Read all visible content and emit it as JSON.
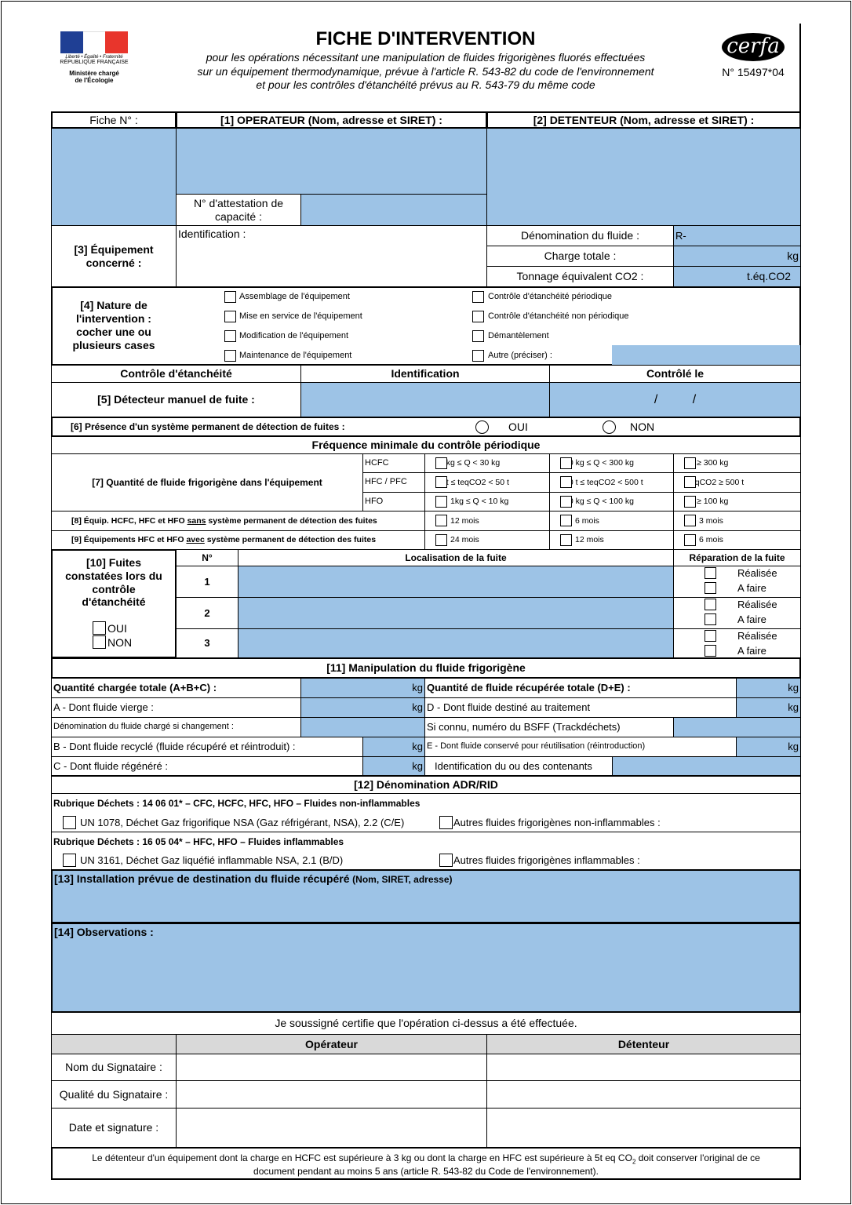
{
  "header": {
    "title": "FICHE D'INTERVENTION",
    "subtitle": [
      "pour les opérations nécessitant une manipulation de fluides frigorigènes fluorés effectuées",
      "sur un équipement thermodynamique, prévue à l'article R. 543-82 du code de l'environnement",
      "et pour les contrôles d'étanchéité prévus au R. 543-79 du même code"
    ],
    "logo_left": {
      "motto": "Liberté • Égalité • Fraternité",
      "republic": "RÉPUBLIQUE FRANÇAISE",
      "ministry": "Ministère chargé de l'Écologie"
    },
    "cerfa_logo": "cerfa",
    "cerfa_number": "N° 15497*04"
  },
  "colors": {
    "field": "#9dc3e6",
    "header_grey": "#d9d9d9"
  },
  "s1": {
    "fiche": "Fiche N° :",
    "operateur": "[1] OPERATEUR (Nom, adresse et SIRET) :",
    "detenteur": "[2] DETENTEUR (Nom, adresse et SIRET) :",
    "attestation": "N° d'attestation de capacité :"
  },
  "s3": {
    "label": "[3] Équipement concerné :",
    "identification": "Identification :",
    "fluide": "Dénomination du fluide :",
    "fluide_value": "R-",
    "charge": "Charge totale :",
    "charge_unit": "kg",
    "tonnage": "Tonnage équivalent CO2 :",
    "tonnage_unit": "t.éq.CO2"
  },
  "s4": {
    "label": "[4] Nature de l'intervention : cocher une ou plusieurs cases",
    "left": [
      "Assemblage de l'équipement",
      "Mise en service de l'équipement",
      "Modification de l'équipement",
      "Maintenance de l'équipement"
    ],
    "right": [
      "Contrôle d'étanchéité périodique",
      "Contrôle d'étanchéité non périodique",
      "Démantèlement",
      "Autre (préciser) :"
    ]
  },
  "s5": {
    "col1": "Contrôle d'étanchéité",
    "col2": "Identification",
    "col3": "Contrôlé le",
    "label": "[5] Détecteur manuel de fuite :",
    "date": "/          /"
  },
  "s6": {
    "label": "[6] Présence d'un système permanent de détection de fuites :",
    "oui": "OUI",
    "non": "NON"
  },
  "freq": {
    "title": "Fréquence minimale du contrôle périodique",
    "s7": "[7] Quantité de fluide frigorigène dans l'équipement",
    "types": [
      "HCFC",
      "HFC / PFC",
      "HFO"
    ],
    "rows": [
      [
        "2 kg ≤ Q < 30 kg",
        "30 kg ≤ Q < 300 kg",
        "Q ≥ 300 kg"
      ],
      [
        "5 t ≤ teqCO2 < 50 t",
        "50 t ≤ teqCO2 < 500 t",
        "teqCO2 ≥ 500 t"
      ],
      [
        "1kg ≤ Q < 10 kg",
        "10 kg ≤ Q < 100 kg",
        "Q ≥ 100 kg"
      ]
    ],
    "s8_a": "[8] Équip. HCFC, HFC et HFO ",
    "s8_u": "sans",
    "s8_b": " système permanent de détection des fuites",
    "s8": [
      "12 mois",
      "6 mois",
      "3 mois"
    ],
    "s9_a": "[9] Équipements HFC et HFO ",
    "s9_u": "avec",
    "s9_b": " système permanent de détection des fuites",
    "s9": [
      "24 mois",
      "12 mois",
      "6 mois"
    ]
  },
  "s10": {
    "label": "[10] Fuites constatées lors du contrôle d'étanchéité",
    "oui": "OUI",
    "non": "NON",
    "col_n": "N°",
    "col_loc": "Localisation de la fuite",
    "col_rep": "Réparation de la fuite",
    "rows": [
      "1",
      "2",
      "3"
    ],
    "realisee": "Réalisée",
    "afaire": "A faire"
  },
  "s11": {
    "title": "[11] Manipulation du fluide frigorigène",
    "left": [
      "Quantité chargée totale (A+B+C) :",
      "A - Dont fluide vierge :",
      "Dénomination du fluide chargé si changement :",
      "B - Dont fluide recyclé (fluide récupéré et réintroduit) :",
      "C - Dont fluide régénéré :"
    ],
    "right": [
      "Quantité de fluide récupérée totale (D+E) :",
      "D - Dont fluide destiné au traitement",
      "Si connu, numéro du BSFF (Trackdéchets)",
      "E - Dont fluide conservé pour réutilisation (réintroduction)",
      "Identification du ou des contenants"
    ],
    "unit": "kg"
  },
  "s12": {
    "title": "[12] Dénomination ADR/RID",
    "rub1": "Rubrique Déchets : 14 06 01* – CFC, HCFC, HFC, HFO – Fluides non-inflammables",
    "un1": "UN 1078, Déchet Gaz frigorifique NSA (Gaz réfrigérant, NSA), 2.2 (C/E)",
    "autre1": "Autres fluides frigorigènes non-inflammables :",
    "rub2": "Rubrique Déchets : 16 05 04* – HFC, HFO – Fluides inflammables",
    "un2": "UN 3161, Déchet Gaz liquéfié inflammable NSA, 2.1 (B/D)",
    "autre2": "Autres fluides frigorigènes inflammables :"
  },
  "s13": {
    "label": "[13] Installation prévue de destination du fluide récupéré",
    "sub": "(Nom, SIRET, adresse)"
  },
  "s14": {
    "label": "[14] Observations :"
  },
  "sign": {
    "certify": "Je soussigné certifie que l'opération ci-dessus a été effectuée.",
    "operateur": "Opérateur",
    "detenteur": "Détenteur",
    "rows": [
      "Nom du Signataire :",
      "Qualité du Signataire :",
      "Date et signature :"
    ]
  },
  "footer": {
    "a": "Le détenteur d'un équipement dont la charge en HCFC est supérieure à 3 kg ou dont la charge en HFC est supérieure à 5t eq CO",
    "sub": "2",
    "b": " doit conserver l'original de ce document pendant au moins 5 ans (article R. 543-82 du Code de l'environnement)."
  }
}
